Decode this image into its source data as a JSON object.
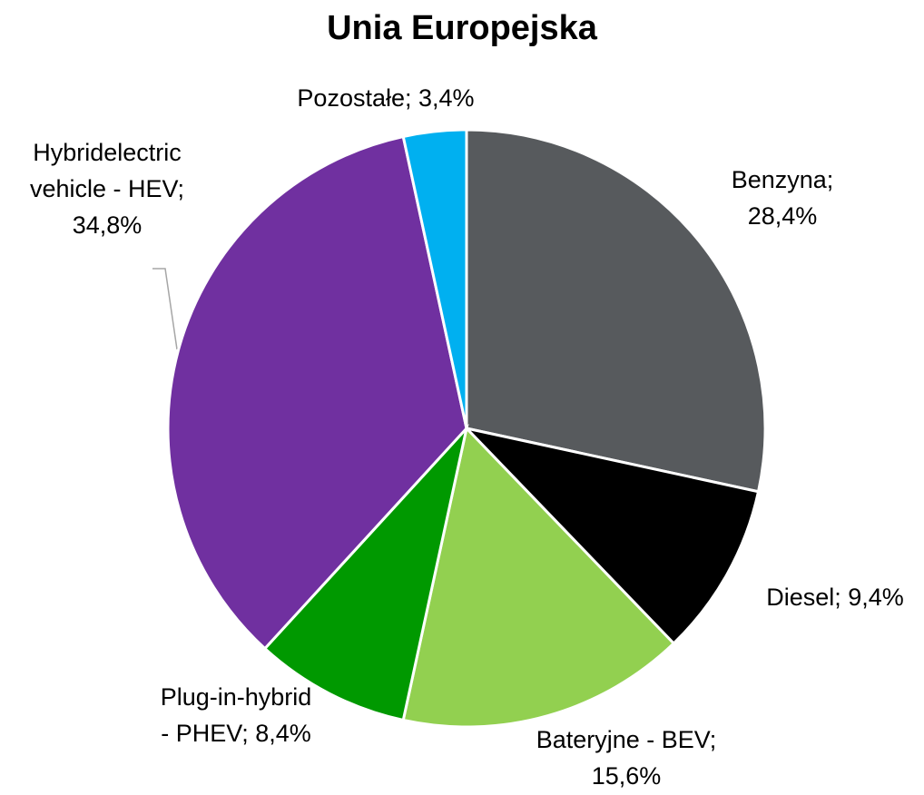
{
  "chart_data": {
    "type": "pie",
    "title": "Unia Europejska",
    "categories": [
      "Benzyna;",
      "Diesel;",
      "Bateryjne - BEV;",
      "Plug-in-hybrid - PHEV;",
      "Hybridelectric vehicle - HEV;",
      "Pozostałe;"
    ],
    "values": [
      28.4,
      9.4,
      15.6,
      8.4,
      34.8,
      3.4
    ],
    "value_labels": [
      "28,4%",
      "9,4%",
      "15,6%",
      "8,4%",
      "34,8%",
      "3,4%"
    ],
    "colors": [
      "#575a5d",
      "#000000",
      "#92d050",
      "#009900",
      "#7030a0",
      "#00b0f0"
    ]
  }
}
